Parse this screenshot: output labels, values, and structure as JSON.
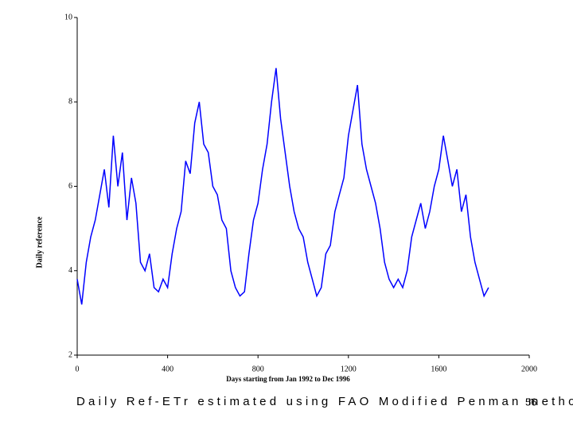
{
  "chart_data": {
    "type": "line",
    "xlabel": "Days starting from Jan 1992 to Dec 1996",
    "ylabel": "Daily reference",
    "color": "#0000ff",
    "x": [
      0,
      20,
      40,
      60,
      80,
      100,
      120,
      140,
      160,
      180,
      200,
      220,
      240,
      260,
      280,
      300,
      320,
      340,
      360,
      380,
      400,
      420,
      440,
      460,
      480,
      500,
      520,
      540,
      560,
      580,
      600,
      620,
      640,
      660,
      680,
      700,
      720,
      740,
      760,
      780,
      800,
      820,
      840,
      860,
      880,
      900,
      920,
      940,
      960,
      980,
      1000,
      1020,
      1040,
      1060,
      1080,
      1100,
      1120,
      1140,
      1160,
      1180,
      1200,
      1220,
      1240,
      1260,
      1280,
      1300,
      1320,
      1340,
      1360,
      1380,
      1400,
      1420,
      1440,
      1460,
      1480,
      1500,
      1520,
      1540,
      1560,
      1580,
      1600,
      1620,
      1640,
      1660,
      1680,
      1700,
      1720,
      1740,
      1760,
      1780,
      1800,
      1820
    ],
    "values": [
      3.8,
      3.2,
      4.2,
      4.8,
      5.2,
      5.8,
      6.4,
      5.5,
      7.2,
      6.0,
      6.8,
      5.2,
      6.2,
      5.6,
      4.2,
      4.0,
      4.4,
      3.6,
      3.5,
      3.8,
      3.6,
      4.4,
      5.0,
      5.4,
      6.6,
      6.3,
      7.5,
      8.0,
      7.0,
      6.8,
      6.0,
      5.8,
      5.2,
      5.0,
      4.0,
      3.6,
      3.4,
      3.5,
      4.4,
      5.2,
      5.6,
      6.4,
      7.0,
      8.0,
      8.8,
      7.6,
      6.8,
      6.0,
      5.4,
      5.0,
      4.8,
      4.2,
      3.8,
      3.4,
      3.6,
      4.4,
      4.6,
      5.4,
      5.8,
      6.2,
      7.2,
      7.8,
      8.4,
      7.0,
      6.4,
      6.0,
      5.6,
      5.0,
      4.2,
      3.8,
      3.6,
      3.8,
      3.6,
      4.0,
      4.8,
      5.2,
      5.6,
      5.0,
      5.4,
      6.0,
      6.4,
      7.2,
      6.6,
      6.0,
      6.4,
      5.4,
      5.8,
      4.8,
      4.2,
      3.8,
      3.4,
      3.6
    ],
    "xlim": [
      0,
      2000
    ],
    "xticks": [
      0,
      400,
      800,
      1200,
      1600,
      2000
    ],
    "ylim": [
      2,
      10
    ],
    "yticks": [
      2,
      4,
      6,
      8,
      10
    ],
    "grid": false
  },
  "slide": {
    "caption": "Daily Ref-ETr estimated using FAO Modified Penman method",
    "page_number": "56"
  }
}
